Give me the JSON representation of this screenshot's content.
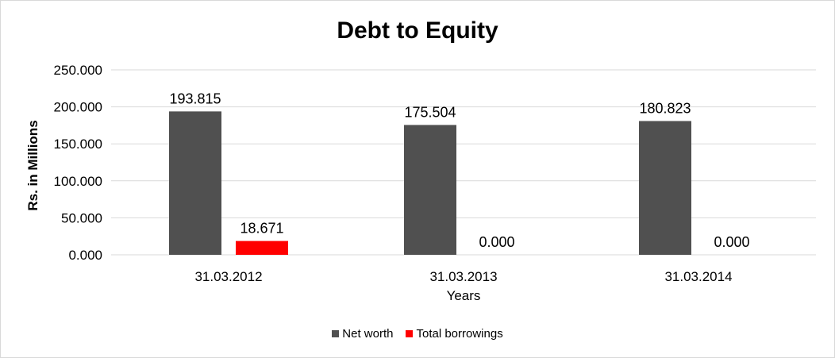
{
  "chart_data": {
    "type": "bar",
    "title": "Debt to Equity",
    "xlabel": "Years",
    "ylabel": "Rs. in Millions",
    "categories": [
      "31.03.2012",
      "31.03.2013",
      "31.03.2014"
    ],
    "series": [
      {
        "name": "Net worth",
        "values": [
          193.815,
          175.504,
          180.823
        ],
        "color": "#505050",
        "labels": [
          "193.815",
          "175.504",
          "180.823"
        ]
      },
      {
        "name": "Total borrowings",
        "values": [
          18.671,
          0.0,
          0.0
        ],
        "color": "#ff0000",
        "labels": [
          "18.671",
          "0.000",
          "0.000"
        ]
      }
    ],
    "ylim": [
      0,
      250
    ],
    "yticks": [
      "0.000",
      "50.000",
      "100.000",
      "150.000",
      "200.000",
      "250.000"
    ],
    "grid": true,
    "legend": "bottom"
  }
}
